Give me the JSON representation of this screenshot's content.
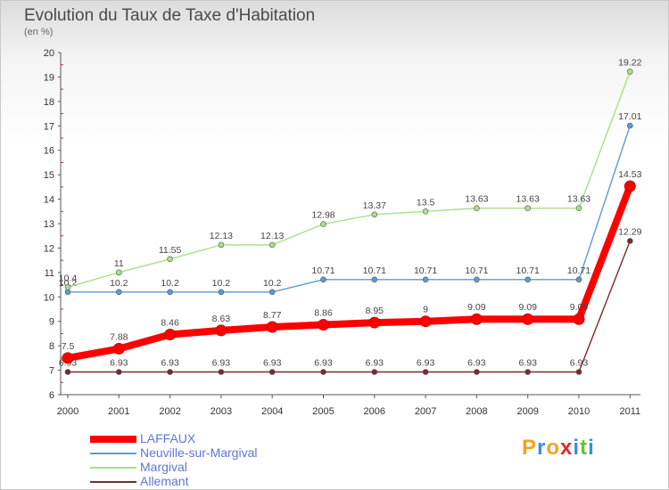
{
  "header": {
    "title": "Evolution du Taux de Taxe d'Habitation",
    "unit": "(en %)"
  },
  "chart_data": {
    "type": "line",
    "title": "Evolution du Taux de Taxe d'Habitation",
    "ylabel": "(en %)",
    "xlabel": "",
    "x": [
      "2000",
      "2001",
      "2002",
      "2003",
      "2004",
      "2005",
      "2006",
      "2007",
      "2008",
      "2009",
      "2010",
      "2011"
    ],
    "yticks": [
      "6",
      "7",
      "8",
      "9",
      "10",
      "11",
      "12",
      "13",
      "14",
      "15",
      "16",
      "17",
      "18",
      "19",
      "20"
    ],
    "ylim": [
      6,
      20
    ],
    "grid": false,
    "legend_position": "bottom-left",
    "series": [
      {
        "name": "Allemant",
        "color": "#7a2a2a",
        "values": [
          6.93,
          6.93,
          6.93,
          6.93,
          6.93,
          6.93,
          6.93,
          6.93,
          6.93,
          6.93,
          6.93,
          12.29
        ],
        "labels": [
          "6.93",
          "6.93",
          "6.93",
          "6.93",
          "6.93",
          "6.93",
          "6.93",
          "6.93",
          "6.93",
          "6.93",
          "6.93",
          "12.29"
        ]
      },
      {
        "name": "Neuville-sur-Margival",
        "color": "#5b9bd5",
        "values": [
          10.2,
          10.2,
          10.2,
          10.2,
          10.2,
          10.71,
          10.71,
          10.71,
          10.71,
          10.71,
          10.71,
          17.01
        ],
        "labels": [
          "10.2",
          "10.2",
          "10.2",
          "10.2",
          "10.2",
          "10.71",
          "10.71",
          "10.71",
          "10.71",
          "10.71",
          "10.71",
          "17.01"
        ]
      },
      {
        "name": "Margival",
        "color": "#a8e08a",
        "values": [
          10.4,
          11,
          11.55,
          12.13,
          12.13,
          12.98,
          13.37,
          13.5,
          13.63,
          13.63,
          13.63,
          19.22
        ],
        "labels": [
          "10.4",
          "11",
          "11.55",
          "12.13",
          "12.13",
          "12.98",
          "13.37",
          "13.5",
          "13.63",
          "13.63",
          "13.63",
          "19.22"
        ]
      },
      {
        "name": "LAFFAUX",
        "color": "#ff0000",
        "values": [
          7.5,
          7.88,
          8.46,
          8.63,
          8.77,
          8.86,
          8.95,
          9,
          9.09,
          9.09,
          9.09,
          14.53
        ],
        "labels": [
          "7.5",
          "7.88",
          "8.46",
          "8.63",
          "8.77",
          "8.86",
          "8.95",
          "9",
          "9.09",
          "9.09",
          "9.09",
          "14.53"
        ]
      }
    ]
  },
  "legend": {
    "items": [
      {
        "label": "LAFFAUX",
        "color": "#ff0000"
      },
      {
        "label": "Neuville-sur-Margival",
        "color": "#5b9bd5"
      },
      {
        "label": "Margival",
        "color": "#a8e08a"
      },
      {
        "label": "Allemant",
        "color": "#7a2a2a"
      }
    ]
  },
  "logo": {
    "letters": [
      "P",
      "r",
      "o",
      "x",
      "i",
      "t",
      "i"
    ],
    "colors": [
      "#f4a31f",
      "#3a8fd9",
      "#f4a31f",
      "#e0282a",
      "#3a8fd9",
      "#6abf3a",
      "#3a8fd9"
    ]
  }
}
